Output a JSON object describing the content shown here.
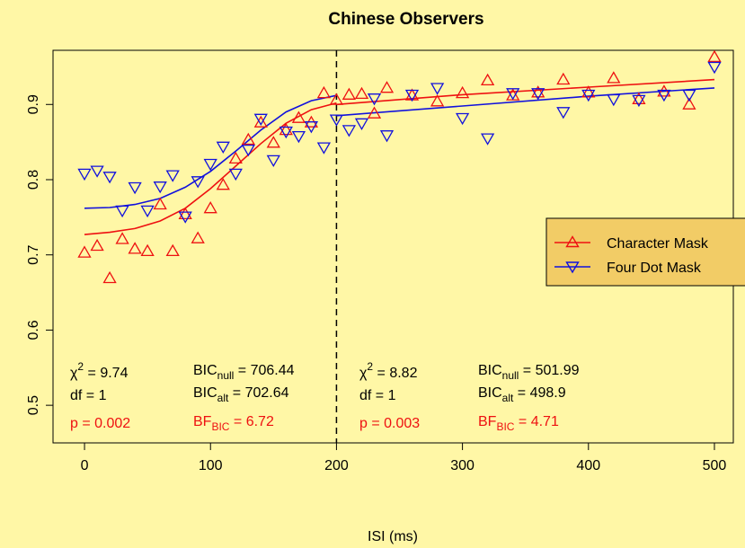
{
  "chart_data": {
    "type": "scatter",
    "title": "Chinese Observers",
    "xlabel": "ISI (ms)",
    "ylabel": "",
    "xlim": [
      -25,
      515
    ],
    "ylim": [
      0.45,
      0.972
    ],
    "xticks": [
      "0",
      "100",
      "200",
      "300",
      "400",
      "500"
    ],
    "yticks": [
      "0.5",
      "0.6",
      "0.7",
      "0.8",
      "0.9"
    ],
    "xtick_values": [
      0,
      100,
      200,
      300,
      400,
      500
    ],
    "ytick_values": [
      0.5,
      0.6,
      0.7,
      0.8,
      0.9
    ],
    "breakpoint_x": 200,
    "legend_position": "right",
    "series": [
      {
        "name": "Character Mask",
        "color": "#EE1111",
        "marker": "triangle-up",
        "x": [
          0,
          10,
          20,
          30,
          40,
          50,
          60,
          70,
          80,
          90,
          100,
          110,
          120,
          130,
          140,
          150,
          160,
          170,
          180,
          190,
          200,
          210,
          220,
          230,
          240,
          260,
          280,
          300,
          320,
          340,
          360,
          380,
          400,
          420,
          440,
          460,
          480,
          500
        ],
        "y": [
          0.703,
          0.712,
          0.669,
          0.721,
          0.708,
          0.705,
          0.767,
          0.705,
          0.754,
          0.722,
          0.762,
          0.793,
          0.828,
          0.853,
          0.876,
          0.849,
          0.866,
          0.882,
          0.876,
          0.915,
          0.906,
          0.913,
          0.914,
          0.888,
          0.922,
          0.912,
          0.904,
          0.915,
          0.932,
          0.912,
          0.916,
          0.933,
          0.916,
          0.935,
          0.907,
          0.917,
          0.9,
          0.963
        ]
      },
      {
        "name": "Four Dot Mask",
        "color": "#1111DD",
        "marker": "triangle-down",
        "x": [
          0,
          10,
          20,
          30,
          40,
          50,
          60,
          70,
          80,
          90,
          100,
          110,
          120,
          130,
          140,
          150,
          160,
          170,
          180,
          190,
          200,
          210,
          220,
          230,
          240,
          260,
          280,
          300,
          320,
          340,
          360,
          380,
          400,
          420,
          440,
          460,
          480,
          500
        ],
        "y": [
          0.808,
          0.812,
          0.804,
          0.759,
          0.79,
          0.759,
          0.791,
          0.806,
          0.751,
          0.798,
          0.821,
          0.844,
          0.808,
          0.84,
          0.881,
          0.826,
          0.864,
          0.858,
          0.871,
          0.843,
          0.88,
          0.866,
          0.875,
          0.908,
          0.859,
          0.913,
          0.922,
          0.882,
          0.855,
          0.915,
          0.915,
          0.89,
          0.913,
          0.907,
          0.906,
          0.913,
          0.913,
          0.95
        ]
      }
    ],
    "fits": [
      {
        "series": "Character Mask",
        "color": "#EE1111",
        "x": [
          0,
          20,
          40,
          60,
          80,
          100,
          120,
          140,
          160,
          180,
          200
        ],
        "y": [
          0.727,
          0.73,
          0.735,
          0.745,
          0.762,
          0.788,
          0.818,
          0.848,
          0.875,
          0.893,
          0.902
        ]
      },
      {
        "series": "Character Mask",
        "color": "#EE1111",
        "x": [
          200,
          300,
          400,
          500
        ],
        "y": [
          0.9,
          0.913,
          0.923,
          0.933
        ]
      },
      {
        "series": "Four Dot Mask",
        "color": "#1111DD",
        "x": [
          0,
          20,
          40,
          60,
          80,
          100,
          120,
          140,
          160,
          180,
          200
        ],
        "y": [
          0.762,
          0.763,
          0.767,
          0.775,
          0.79,
          0.811,
          0.838,
          0.866,
          0.89,
          0.905,
          0.912
        ]
      },
      {
        "series": "Four Dot Mask",
        "color": "#1111DD",
        "x": [
          200,
          300,
          400,
          500
        ],
        "y": [
          0.885,
          0.898,
          0.911,
          0.922
        ]
      }
    ],
    "stats": {
      "left": {
        "chi": "χ",
        "chi_sup": "2",
        "chi_val": " = 9.74",
        "df": "df = 1",
        "p": "p = 0.002",
        "bic_null_base": "BIC",
        "bic_null_sub": "null",
        "bic_null_val": " = 706.44",
        "bic_alt_base": "BIC",
        "bic_alt_sub": "alt",
        "bic_alt_val": " = 702.64",
        "bf_base": "BF",
        "bf_sub": "BIC",
        "bf_val": " = 6.72"
      },
      "right": {
        "chi": "χ",
        "chi_sup": "2",
        "chi_val": " = 8.82",
        "df": "df = 1",
        "p": "p = 0.003",
        "bic_null_base": "BIC",
        "bic_null_sub": "null",
        "bic_null_val": " = 501.99",
        "bic_alt_base": "BIC",
        "bic_alt_sub": "alt",
        "bic_alt_val": " = 498.9",
        "bf_base": "BF",
        "bf_sub": "BIC",
        "bf_val": " = 4.71"
      }
    },
    "colors": {
      "background": "#FFF7A6",
      "plot_bg": "#FFF7A6",
      "legend_bg": "#F2CC66"
    }
  }
}
